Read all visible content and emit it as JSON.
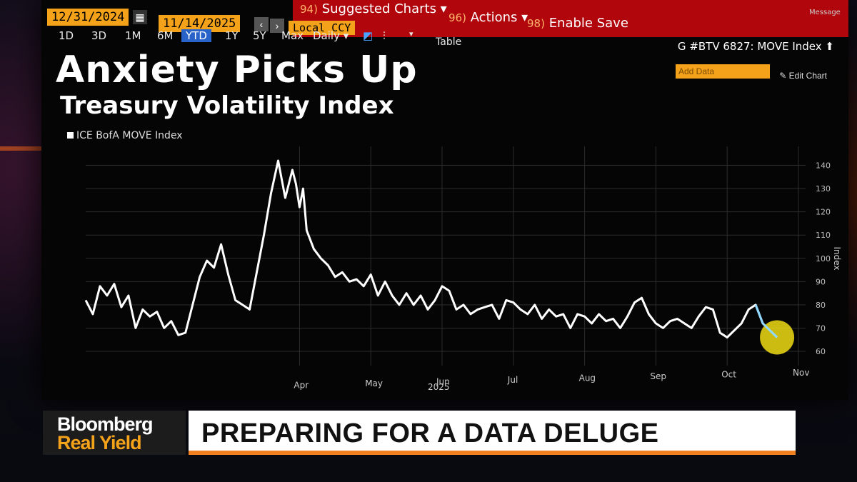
{
  "toolbar": {
    "start_date": "12/31/2024",
    "end_date": "11/14/2025",
    "currency": "Local CCY",
    "suggested_num": "94)",
    "suggested_charts": "Suggested Charts",
    "actions_num": "96)",
    "actions": "Actions",
    "save_num": "98)",
    "enable_save": "Enable Save",
    "message": "Message",
    "frequency": "Daily",
    "table": "Table",
    "ticker": "G #BTV 6827: MOVE Index",
    "add_data": "Add Data",
    "edit_chart": "Edit Chart"
  },
  "ranges": [
    "1D",
    "3D",
    "1M",
    "6M",
    "YTD",
    "1Y",
    "5Y",
    "Max"
  ],
  "chart_data": {
    "type": "line",
    "title": "Anxiety Picks Up",
    "subtitle": "Treasury Volatility Index",
    "ylabel": "Index",
    "ylim": [
      60,
      142
    ],
    "yticks": [
      60,
      70,
      80,
      90,
      100,
      110,
      120,
      130,
      140
    ],
    "xticks": [
      {
        "label": "Apr",
        "x": 3.0
      },
      {
        "label": "May",
        "x": 4.0
      },
      {
        "label": "Jun",
        "x": 5.0
      },
      {
        "label": "Jul",
        "x": 6.0
      },
      {
        "label": "Aug",
        "x": 7.0
      },
      {
        "label": "Sep",
        "x": 8.0
      },
      {
        "label": "Oct",
        "x": 9.0
      },
      {
        "label": "Nov",
        "x": 10.0
      }
    ],
    "year_label": "2025",
    "grid": true,
    "series": [
      {
        "name": "ICE BofA MOVE Index",
        "x": [
          0.0,
          0.1,
          0.2,
          0.3,
          0.4,
          0.5,
          0.6,
          0.7,
          0.8,
          0.9,
          1.0,
          1.1,
          1.2,
          1.3,
          1.4,
          1.5,
          1.6,
          1.7,
          1.8,
          1.9,
          2.0,
          2.1,
          2.2,
          2.3,
          2.4,
          2.5,
          2.6,
          2.7,
          2.8,
          2.9,
          2.95,
          3.0,
          3.05,
          3.1,
          3.15,
          3.2,
          3.3,
          3.4,
          3.5,
          3.6,
          3.7,
          3.8,
          3.9,
          4.0,
          4.1,
          4.2,
          4.3,
          4.4,
          4.5,
          4.6,
          4.7,
          4.8,
          4.9,
          5.0,
          5.1,
          5.2,
          5.3,
          5.4,
          5.5,
          5.6,
          5.7,
          5.8,
          5.9,
          6.0,
          6.1,
          6.2,
          6.3,
          6.4,
          6.5,
          6.6,
          6.7,
          6.8,
          6.9,
          7.0,
          7.1,
          7.2,
          7.3,
          7.4,
          7.5,
          7.6,
          7.7,
          7.8,
          7.9,
          8.0,
          8.1,
          8.2,
          8.3,
          8.4,
          8.5,
          8.6,
          8.7,
          8.8,
          8.9,
          9.0,
          9.1,
          9.2,
          9.3,
          9.4,
          9.5,
          9.6,
          9.7
        ],
        "values": [
          82,
          76,
          88,
          84,
          89,
          79,
          84,
          70,
          78,
          75,
          77,
          70,
          73,
          67,
          68,
          80,
          92,
          99,
          96,
          106,
          93,
          82,
          80,
          78,
          94,
          110,
          128,
          142,
          126,
          138,
          132,
          122,
          130,
          112,
          108,
          104,
          100,
          97,
          92,
          94,
          90,
          91,
          88,
          93,
          84,
          90,
          84,
          80,
          85,
          80,
          84,
          78,
          82,
          88,
          86,
          78,
          80,
          76,
          78,
          79,
          80,
          74,
          82,
          81,
          78,
          76,
          80,
          74,
          78,
          75,
          76,
          70,
          76,
          75,
          72,
          76,
          73,
          74,
          70,
          75,
          81,
          83,
          76,
          72,
          70,
          73,
          74,
          72,
          70,
          75,
          79,
          78,
          68,
          66,
          69,
          72,
          78,
          80,
          72,
          69,
          66
        ]
      }
    ]
  },
  "lower_third": {
    "brand": "Bloomberg",
    "show": "Real Yield",
    "headline": "PREPARING FOR A DATA DELUGE"
  }
}
